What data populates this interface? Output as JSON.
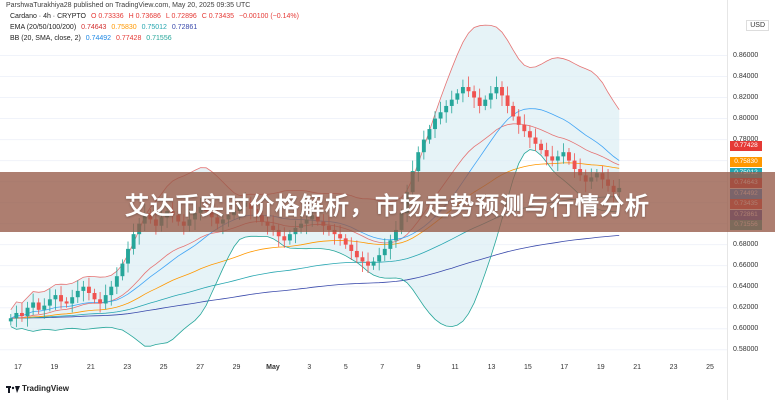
{
  "header": {
    "published_line": "ParshwaTurakhiya28 published on TradingView.com, May 20, 2025 09:35 UTC",
    "currency": "USD"
  },
  "legend": {
    "symbol_line": [
      "Cardano · 4h · CRYPTO",
      "O 0.73336",
      "H 0.73686",
      "L 0.72896",
      "C 0.73435",
      "−0.00100 (−0.14%)"
    ],
    "ema_line": [
      "EMA (20/50/100/200)",
      "0.74643",
      "0.75830",
      "0.75012",
      "0.72861"
    ],
    "bb_line": [
      "BB (20, SMA, close, 2)",
      "0.74492",
      "0.77428",
      "0.71556"
    ]
  },
  "price_axis": [
    "0.86000",
    "0.84000",
    "0.82000",
    "0.80000",
    "0.78000",
    "0.76000",
    "0.74000",
    "0.72000",
    "0.70000",
    "0.68000",
    "0.66000",
    "0.64000",
    "0.62000",
    "0.60000",
    "0.58000"
  ],
  "date_axis": [
    {
      "label": "17",
      "bold": false
    },
    {
      "label": "19",
      "bold": false
    },
    {
      "label": "21",
      "bold": false
    },
    {
      "label": "23",
      "bold": false
    },
    {
      "label": "25",
      "bold": false
    },
    {
      "label": "27",
      "bold": false
    },
    {
      "label": "29",
      "bold": false
    },
    {
      "label": "May",
      "bold": true
    },
    {
      "label": "3",
      "bold": false
    },
    {
      "label": "5",
      "bold": false
    },
    {
      "label": "7",
      "bold": false
    },
    {
      "label": "9",
      "bold": false
    },
    {
      "label": "11",
      "bold": false
    },
    {
      "label": "13",
      "bold": false
    },
    {
      "label": "15",
      "bold": false
    },
    {
      "label": "17",
      "bold": false
    },
    {
      "label": "19",
      "bold": false
    },
    {
      "label": "21",
      "bold": false
    },
    {
      "label": "23",
      "bold": false
    },
    {
      "label": "25",
      "bold": false
    }
  ],
  "badges": [
    {
      "text": "0.77428",
      "color": "#e53935",
      "value": 0.77428
    },
    {
      "text": "0.75830",
      "color": "#ff9800",
      "value": 0.7583
    },
    {
      "text": "0.75012",
      "color": "#26a6b0",
      "value": 0.75012
    },
    {
      "text": "0.74643",
      "color": "#d32f2f",
      "value": 0.74643
    },
    {
      "text": "0.74492",
      "color": "#1e88e5",
      "value": 0.74492
    },
    {
      "text": "0.73435",
      "color": "#e53935",
      "value": 0.73435
    },
    {
      "text": "0.72861",
      "color": "#3949ab",
      "value": 0.72861
    },
    {
      "text": "0.71556",
      "color": "#26a69a",
      "value": 0.71556
    }
  ],
  "banner": {
    "text": "艾达币实时价格解析，市场走势预测与行情分析"
  },
  "footer": {
    "brand": "TradingView"
  },
  "colors": {
    "up": "#26a69a",
    "down": "#ef5350",
    "bb_upper": "#e57373",
    "bb_lower": "#26a69a",
    "bb_basis": "#42a5f5",
    "bb_fill": "#dbeef3"
  },
  "chart_data": {
    "type": "candlestick",
    "ylim": [
      0.575,
      0.87
    ],
    "closes": [
      0.61,
      0.615,
      0.612,
      0.62,
      0.625,
      0.618,
      0.622,
      0.628,
      0.632,
      0.626,
      0.624,
      0.63,
      0.636,
      0.64,
      0.634,
      0.628,
      0.624,
      0.632,
      0.64,
      0.65,
      0.662,
      0.676,
      0.69,
      0.7,
      0.71,
      0.704,
      0.698,
      0.706,
      0.712,
      0.708,
      0.702,
      0.698,
      0.704,
      0.71,
      0.716,
      0.712,
      0.706,
      0.7,
      0.704,
      0.708,
      0.712,
      0.716,
      0.72,
      0.714,
      0.708,
      0.702,
      0.698,
      0.694,
      0.688,
      0.684,
      0.69,
      0.696,
      0.7,
      0.704,
      0.708,
      0.702,
      0.698,
      0.694,
      0.69,
      0.686,
      0.68,
      0.674,
      0.668,
      0.664,
      0.66,
      0.664,
      0.67,
      0.676,
      0.684,
      0.694,
      0.71,
      0.73,
      0.75,
      0.768,
      0.78,
      0.79,
      0.8,
      0.806,
      0.812,
      0.818,
      0.824,
      0.83,
      0.826,
      0.82,
      0.812,
      0.818,
      0.824,
      0.83,
      0.822,
      0.812,
      0.802,
      0.794,
      0.788,
      0.782,
      0.776,
      0.77,
      0.764,
      0.76,
      0.764,
      0.768,
      0.76,
      0.752,
      0.746,
      0.74,
      0.744,
      0.748,
      0.742,
      0.736,
      0.73,
      0.734
    ]
  }
}
